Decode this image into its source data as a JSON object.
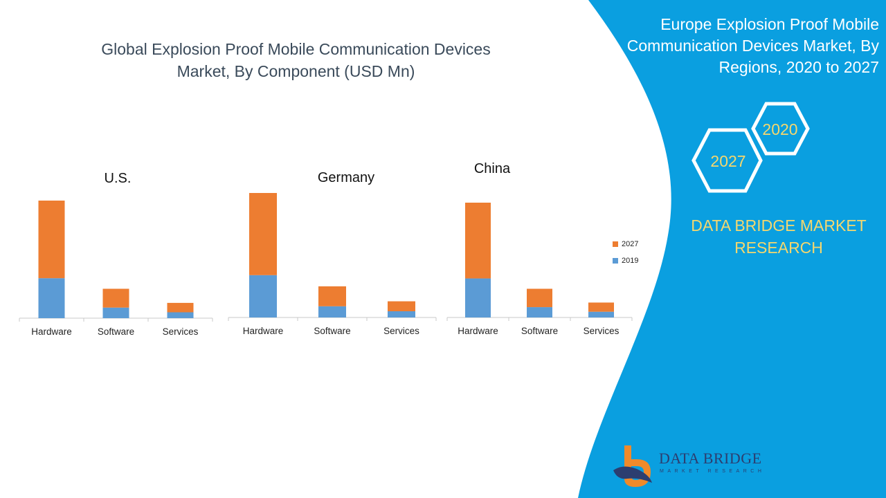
{
  "main_title_line1": "Global Explosion Proof Mobile Communication Devices",
  "main_title_line2": "Market, By Component (USD Mn)",
  "right_panel": {
    "title_line1": "Europe Explosion Proof Mobile",
    "title_line2": "Communication Devices Market, By",
    "title_line3": "Regions, 2020 to 2027",
    "hex_2020": "2020",
    "hex_2027": "2027",
    "brand_line1": "DATA BRIDGE MARKET",
    "brand_line2": "RESEARCH",
    "logo_name": "DATA BRIDGE",
    "logo_sub": "MARKET RESEARCH"
  },
  "colors": {
    "series_2019": "#5b9bd5",
    "series_2027": "#ed7d31",
    "panel_blue": "#0a9fe0",
    "accent_yellow": "#f5d76e"
  },
  "chart_data": [
    {
      "type": "bar",
      "stacked": true,
      "title": "U.S.",
      "categories": [
        "Hardware",
        "Software",
        "Services"
      ],
      "series": [
        {
          "name": "2019",
          "values": [
            34,
            9,
            5
          ]
        },
        {
          "name": "2027",
          "values": [
            66,
            16,
            8
          ]
        }
      ],
      "ylim": [
        0,
        100
      ]
    },
    {
      "type": "bar",
      "stacked": true,
      "title": "Germany",
      "categories": [
        "Hardware",
        "Software",
        "Services"
      ],
      "series": [
        {
          "name": "2019",
          "values": [
            34,
            9,
            5
          ]
        },
        {
          "name": "2027",
          "values": [
            66,
            16,
            8
          ]
        }
      ],
      "ylim": [
        0,
        100
      ]
    },
    {
      "type": "bar",
      "stacked": true,
      "title": "China",
      "categories": [
        "Hardware",
        "Software",
        "Services"
      ],
      "series": [
        {
          "name": "2019",
          "values": [
            34,
            9,
            5
          ]
        },
        {
          "name": "2027",
          "values": [
            66,
            16,
            8
          ]
        }
      ],
      "ylim": [
        0,
        100
      ]
    }
  ],
  "legend": [
    {
      "label": "2027",
      "series": "2027"
    },
    {
      "label": "2019",
      "series": "2019"
    }
  ]
}
